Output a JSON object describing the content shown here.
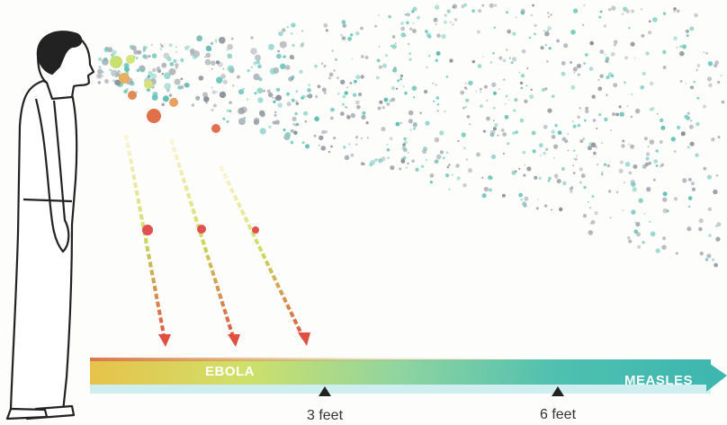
{
  "scale": {
    "left_label": "EBOLA",
    "right_label": "MEASLES",
    "markers": [
      "3 feet",
      "6 feet"
    ]
  }
}
